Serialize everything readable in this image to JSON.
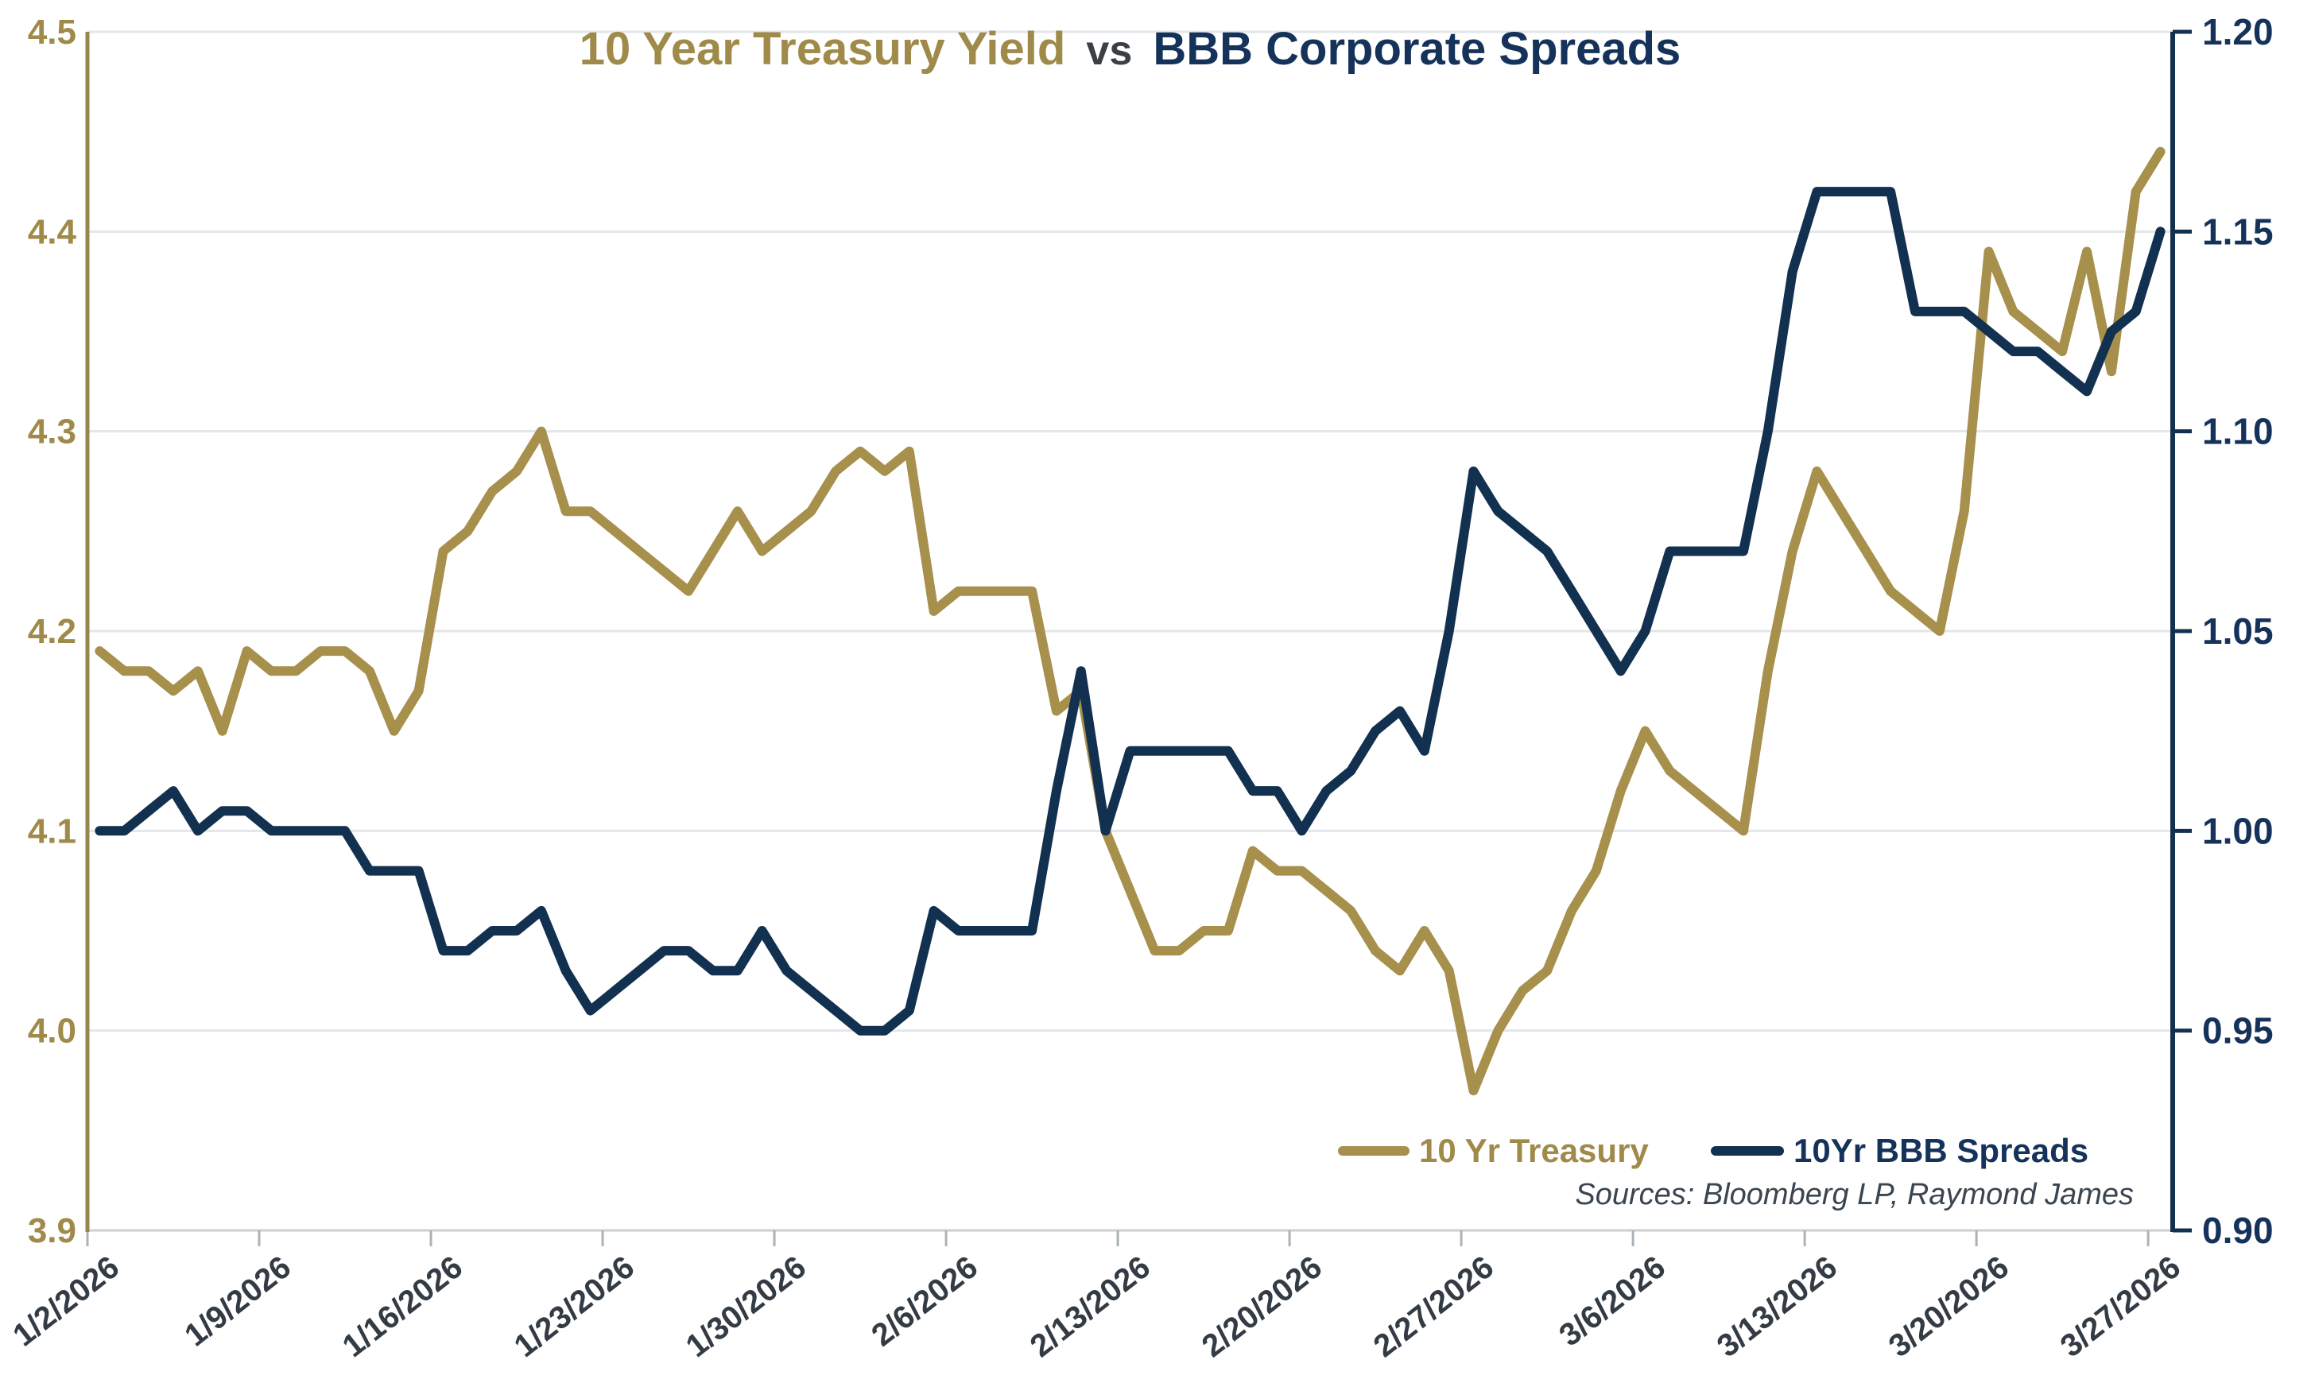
{
  "title": {
    "part_gold": "10 Year Treasury Yield",
    "part_vs": "vs",
    "part_navy": "BBB Corporate Spreads"
  },
  "source_text": "Sources: Bloomberg LP, Raymond James",
  "colors": {
    "gold_line": "#A7904B",
    "gold_text": "#9F8A4A",
    "navy_line": "#12304F",
    "navy_text": "#15325A",
    "vs_text": "#3A4045",
    "date_text": "#333B44",
    "source_text": "#3A4550",
    "gridline": "#E3E6EA",
    "bottom_axis": "#CBD0D4",
    "bottom_tick": "#ABB2B8",
    "left_axis": "#98864A",
    "right_axis": "#13314F"
  },
  "legend": {
    "items": [
      {
        "label": "10 Yr Treasury",
        "color": "#A7904B",
        "text_color": "#9F8A4A"
      },
      {
        "label": "10Yr BBB Spreads",
        "color": "#12304F",
        "text_color": "#15325A"
      }
    ]
  },
  "chart_data": {
    "type": "line",
    "title": "10 Year Treasury Yield vs BBB Corporate Spreads",
    "grid": true,
    "legend_position": "bottom-right-inside",
    "x_tick_labels": [
      "1/2/2026",
      "1/9/2026",
      "1/16/2026",
      "1/23/2026",
      "1/30/2026",
      "2/6/2026",
      "2/13/2026",
      "2/20/2026",
      "2/27/2026",
      "3/6/2026",
      "3/13/2026",
      "3/20/2026",
      "3/27/2026"
    ],
    "x_label_every_n_points": 7,
    "n_points": 85,
    "left_axis": {
      "min": 3.9,
      "max": 4.5,
      "tick_step": 0.1,
      "tick_labels": [
        "4.5",
        "4.4",
        "4.3",
        "4.2",
        "4.1",
        "4.0",
        "3.9"
      ]
    },
    "right_axis": {
      "min": 0.9,
      "max": 1.2,
      "tick_step": 0.05,
      "tick_labels": [
        "1.20",
        "1.15",
        "1.10",
        "1.05",
        "1.00",
        "0.95",
        "0.90"
      ]
    },
    "series": [
      {
        "name": "10 Yr Treasury",
        "axis": "left",
        "color": "#A7904B",
        "values": [
          4.19,
          4.18,
          4.18,
          4.17,
          4.18,
          4.15,
          4.19,
          4.18,
          4.18,
          4.19,
          4.19,
          4.18,
          4.15,
          4.17,
          4.24,
          4.25,
          4.27,
          4.28,
          4.3,
          4.26,
          4.26,
          4.25,
          4.24,
          4.23,
          4.22,
          4.24,
          4.26,
          4.24,
          4.25,
          4.26,
          4.28,
          4.29,
          4.28,
          4.29,
          4.21,
          4.22,
          4.22,
          4.22,
          4.22,
          4.16,
          4.17,
          4.1,
          4.07,
          4.04,
          4.04,
          4.05,
          4.05,
          4.09,
          4.08,
          4.08,
          4.07,
          4.06,
          4.04,
          4.03,
          4.05,
          4.03,
          3.97,
          4.0,
          4.02,
          4.03,
          4.06,
          4.08,
          4.12,
          4.15,
          4.13,
          4.12,
          4.11,
          4.1,
          4.18,
          4.24,
          4.28,
          4.26,
          4.24,
          4.22,
          4.21,
          4.2,
          4.26,
          4.39,
          4.36,
          4.35,
          4.34,
          4.39,
          4.33,
          4.42,
          4.44
        ]
      },
      {
        "name": "10Yr BBB Spreads",
        "axis": "right",
        "color": "#12304F",
        "values": [
          1.0,
          1.0,
          1.005,
          1.01,
          1.0,
          1.005,
          1.005,
          1.0,
          1.0,
          1.0,
          1.0,
          0.99,
          0.99,
          0.99,
          0.97,
          0.97,
          0.975,
          0.975,
          0.98,
          0.965,
          0.955,
          0.96,
          0.965,
          0.97,
          0.97,
          0.965,
          0.965,
          0.975,
          0.965,
          0.96,
          0.955,
          0.95,
          0.95,
          0.955,
          0.98,
          0.975,
          0.975,
          0.975,
          0.975,
          1.01,
          1.04,
          1.0,
          1.02,
          1.02,
          1.02,
          1.02,
          1.02,
          1.01,
          1.01,
          1.0,
          1.01,
          1.015,
          1.025,
          1.03,
          1.02,
          1.05,
          1.09,
          1.08,
          1.075,
          1.07,
          1.06,
          1.05,
          1.04,
          1.05,
          1.07,
          1.07,
          1.07,
          1.07,
          1.1,
          1.14,
          1.16,
          1.16,
          1.16,
          1.16,
          1.13,
          1.13,
          1.13,
          1.125,
          1.12,
          1.12,
          1.115,
          1.11,
          1.125,
          1.13,
          1.15
        ]
      }
    ]
  }
}
